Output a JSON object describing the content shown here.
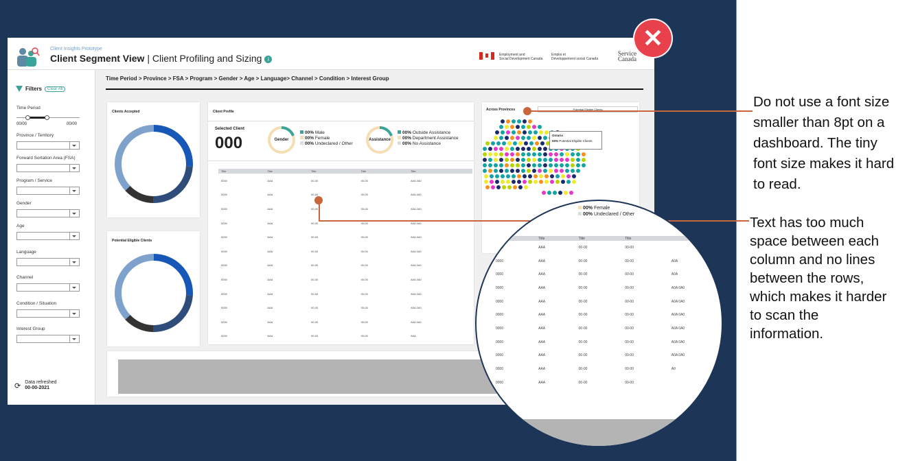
{
  "header": {
    "prototype_label": "Client Insights Prototype",
    "title_bold": "Client Segment View",
    "title_rest": " | Client Profiling and Sizing",
    "info_icon": "i",
    "gov_en": [
      "Employment and",
      "Social Development Canada"
    ],
    "gov_fr": [
      "Emploi et",
      "Développement social Canada"
    ],
    "service_canada": [
      "Service",
      "Canada"
    ]
  },
  "filters": {
    "title": "Filters",
    "clear_label": "Clear All",
    "time_period_label": "Time Period",
    "time_start": "00/00",
    "time_end": "00/00",
    "items": [
      "Province / Territory",
      "Forward Sortation Area (FSA)",
      "Program / Service",
      "Gender",
      "Age",
      "Language",
      "Channel",
      "Condition / Situation",
      "Interest Group"
    ],
    "refresh_icon": "⟳",
    "refresh_label": "Data refreshed",
    "refresh_date": "00-00-2021"
  },
  "breadcrumb": "Time Period > Province > FSA > Program > Gender > Age > Language> Channel > Condition > Interest Group",
  "clients_accepted": {
    "title": "Clients Accepted",
    "segments": [
      0.26,
      0.24,
      0.13,
      0.37
    ]
  },
  "potential_eligible": {
    "title": "Potential Eligible Clients",
    "segments": [
      0.26,
      0.24,
      0.13,
      0.37
    ]
  },
  "client_profile": {
    "title": "Client Profile",
    "selected_label": "Selected Client",
    "selected_value": "000",
    "gender_label": "Gender",
    "gender_legend": [
      {
        "pct": "00%",
        "label": "Male",
        "color": "#3aa39a"
      },
      {
        "pct": "00%",
        "label": "Female",
        "color": "#f5deb3"
      },
      {
        "pct": "00%",
        "label": "Undeclared / Other",
        "color": "#dddddd"
      }
    ],
    "assistance_label": "Assistance",
    "assistance_legend": [
      {
        "pct": "00%",
        "label": "Outside Assistance",
        "color": "#3aa39a"
      },
      {
        "pct": "00%",
        "label": "Department Assistance",
        "color": "#f5deb3"
      },
      {
        "pct": "00%",
        "label": "No Assistance",
        "color": "#dddddd"
      }
    ],
    "table_headers": [
      "Title",
      "Title",
      "Title",
      "Title",
      "Title"
    ],
    "table_rows": [
      [
        "0000",
        "AAA",
        "00-00",
        "00-00",
        "A0A 0A0"
      ],
      [
        "0000",
        "AAA",
        "00-00",
        "00-00",
        "A0A 0A0"
      ],
      [
        "0000",
        "AAA",
        "00-00",
        "00-00",
        "A0A 0A0"
      ],
      [
        "0000",
        "AAA",
        "00-00",
        "00-00",
        "A0A 0A0"
      ],
      [
        "0000",
        "AAA",
        "00-00",
        "00-00",
        "A0A 0A0"
      ],
      [
        "0000",
        "AAA",
        "00-00",
        "00-00",
        "A0A 0A0"
      ],
      [
        "0000",
        "AAA",
        "00-00",
        "00-00",
        "A0A 0A0"
      ],
      [
        "0000",
        "AAA",
        "00-00",
        "00-00",
        "A0A 0A0"
      ],
      [
        "0000",
        "AAA",
        "00-00",
        "00-00",
        "A0A 0A0"
      ],
      [
        "0000",
        "AAA",
        "00-00",
        "00-00",
        "A0A 0A0"
      ],
      [
        "0000",
        "AAA",
        "00-00",
        "00-00",
        "A0A 0A0"
      ],
      [
        "0000",
        "AAA",
        "00-00",
        "00-00",
        "A0A"
      ]
    ]
  },
  "provinces": {
    "title": "Across Provinces",
    "dropdown": "Potential Eligible Clients",
    "tooltip_title": "Ontario",
    "tooltip_pct": "00%",
    "tooltip_text": "Potential Eligible Clients",
    "dot_colors": [
      "#13a3a3",
      "#13a3a3",
      "#13a3a3",
      "#1a2a6c",
      "#f78f1e",
      "#e639c8",
      "#b8d400",
      "#f0ea2c"
    ]
  },
  "zoom": {
    "legend": [
      {
        "pct": "00%",
        "label": "Female",
        "color": "#f5deb3"
      },
      {
        "pct": "00%",
        "label": "Undeclared / Other",
        "color": "#dddddd"
      }
    ],
    "table_headers": [
      "Title",
      "Title",
      "Title",
      "Title"
    ],
    "table_rows": [
      [
        "0000",
        "AAA",
        "00-00",
        "00-00",
        ""
      ],
      [
        "0000",
        "AAA",
        "00-00",
        "00-00",
        "A0A"
      ],
      [
        "0000",
        "AAA",
        "00-00",
        "00-00",
        "A0A"
      ],
      [
        "0000",
        "AAA",
        "00-00",
        "00-00",
        "A0A 0A0"
      ],
      [
        "0000",
        "AAA",
        "00-00",
        "00-00",
        "A0A 0A0"
      ],
      [
        "0000",
        "AAA",
        "00-00",
        "00-00",
        "A0A 0A0"
      ],
      [
        "0000",
        "AAA",
        "00-00",
        "00-00",
        "A0A 0A0"
      ],
      [
        "0000",
        "AAA",
        "00-00",
        "00-00",
        "A0A 0A0"
      ],
      [
        "0000",
        "AAA",
        "00-00",
        "00-00",
        "A0A 0A0"
      ],
      [
        "0000",
        "AAA",
        "00-00",
        "00-00",
        "A0"
      ],
      [
        "0000",
        "AAA",
        "00-00",
        "00-00",
        ""
      ]
    ]
  },
  "close_icon": "✕",
  "callouts": {
    "font_size": [
      "Do not use a font size",
      "smaller than 8pt on a",
      "dashboard. The tiny",
      "font size makes it hard",
      "to read."
    ],
    "spacing": [
      "Text has too much",
      "space between each",
      "column and no lines",
      "between the rows,",
      "which makes it harder",
      "to scan the",
      "information."
    ]
  },
  "colors": {
    "slide_bg": "#1d3557",
    "donut_blue": "#1657b8",
    "donut_navy": "#2f4d7a",
    "donut_dark": "#333333",
    "donut_light": "#7fa2cc",
    "teal": "#3aa39a",
    "callout_line": "#c8653b",
    "close_red": "#e8414b"
  }
}
